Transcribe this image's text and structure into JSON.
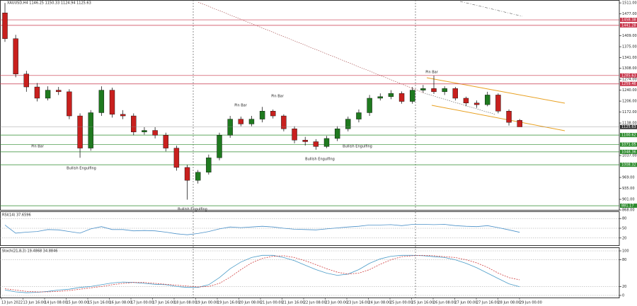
{
  "chart_data": [
    {
      "type": "candlestick",
      "title": "XAUUSD,H4 1146.25 1150.33 1124.94 1125.63",
      "open": [
        1480,
        1400,
        1290,
        1250,
        1215,
        1240,
        1235,
        1160,
        1060,
        1170,
        1240,
        1165,
        1160,
        1110,
        1115,
        1100,
        1060,
        1000,
        960,
        985,
        1030,
        1100,
        1150,
        1135,
        1150,
        1175,
        1160,
        1120,
        1085,
        1080,
        1065,
        1090,
        1120,
        1150,
        1170,
        1215,
        1220,
        1230,
        1205,
        1240,
        1245,
        1235,
        1245,
        1215,
        1200,
        1195,
        1225,
        1175,
        1146.25
      ],
      "high": [
        1511,
        1412,
        1300,
        1262,
        1252,
        1250,
        1243,
        1168,
        1178,
        1252,
        1248,
        1178,
        1168,
        1125,
        1125,
        1108,
        1068,
        1008,
        992,
        1040,
        1108,
        1160,
        1158,
        1160,
        1188,
        1180,
        1165,
        1128,
        1095,
        1088,
        1098,
        1128,
        1158,
        1180,
        1225,
        1230,
        1240,
        1236,
        1250,
        1256,
        1285,
        1252,
        1250,
        1220,
        1208,
        1235,
        1230,
        1180,
        1150.33
      ],
      "low": [
        1390,
        1280,
        1235,
        1205,
        1208,
        1225,
        1150,
        1030,
        1052,
        1160,
        1155,
        1150,
        1100,
        1102,
        1090,
        1050,
        990,
        900,
        950,
        978,
        1022,
        1092,
        1128,
        1128,
        1140,
        1152,
        1112,
        1075,
        1068,
        1055,
        1060,
        1082,
        1112,
        1140,
        1160,
        1208,
        1212,
        1198,
        1198,
        1232,
        1228,
        1225,
        1208,
        1190,
        1185,
        1190,
        1168,
        1130,
        1124.94
      ],
      "close": [
        1400,
        1290,
        1250,
        1215,
        1240,
        1235,
        1160,
        1060,
        1170,
        1240,
        1165,
        1160,
        1110,
        1115,
        1100,
        1060,
        1000,
        960,
        985,
        1030,
        1100,
        1150,
        1135,
        1150,
        1175,
        1160,
        1120,
        1085,
        1080,
        1065,
        1090,
        1120,
        1150,
        1170,
        1215,
        1220,
        1230,
        1205,
        1240,
        1245,
        1235,
        1245,
        1215,
        1200,
        1195,
        1225,
        1175,
        1140,
        1125.63
      ],
      "up_color": "#1f7a1f",
      "down_color": "#c8201e",
      "ylim": [
        866,
        1520
      ],
      "yticks": [
        {
          "value": 1511,
          "label": "1511.00"
        },
        {
          "value": 1477,
          "label": "1477.00"
        },
        {
          "value": 1409,
          "label": "1409.00"
        },
        {
          "value": 1375,
          "label": "1375.00"
        },
        {
          "value": 1341,
          "label": "1341.00"
        },
        {
          "value": 1308,
          "label": "1308.00"
        },
        {
          "value": 1274,
          "label": "1274.00"
        },
        {
          "value": 1240,
          "label": "1240.00"
        },
        {
          "value": 1206,
          "label": "1206.00"
        },
        {
          "value": 1172,
          "label": "1172.00"
        },
        {
          "value": 1138,
          "label": "1138.00"
        },
        {
          "value": 1037,
          "label": "1037.00"
        },
        {
          "value": 969,
          "label": "969.00"
        },
        {
          "value": 935,
          "label": "935.00"
        },
        {
          "value": 901,
          "label": "901.00"
        },
        {
          "value": 868,
          "label": "868.00"
        }
      ],
      "levels": [
        {
          "value": 1458.38,
          "color": "#c8344a"
        },
        {
          "value": 1441.28,
          "color": "#c8344a"
        },
        {
          "value": 1285.63,
          "color": "#c8344a"
        },
        {
          "value": 1259.46,
          "color": "#c8344a"
        },
        {
          "value": 1100.62,
          "color": "#2e8b2e"
        },
        {
          "value": 1071.05,
          "color": "#2e8b2e"
        },
        {
          "value": 1048.36,
          "color": "#2e8b2e"
        },
        {
          "value": 1008.32,
          "color": "#2e8b2e"
        },
        {
          "value": 881.17,
          "color": "#2e8b2e"
        }
      ],
      "annotations": [
        "Pin Bar",
        "Bullish Engulfing",
        "Pin Bar",
        "Pin Bar",
        "Bullish Engulfing",
        "Bullish Engulfing",
        "Bullish Engulfing",
        "Pin Bar"
      ],
      "x_labels": [
        "13 Jun 2022",
        "13 Jun 16:00",
        "14 Jun 08:00",
        "15 Jun 00:00",
        "15 Jun 16:00",
        "16 Jun 08:00",
        "17 Jun 00:00",
        "17 Jun 16:00",
        "18 Jun 08:00",
        "19 Jun 00:00",
        "19 Jun 16:00",
        "20 Jun 08:00",
        "21 Jun 00:00",
        "21 Jun 16:00",
        "22 Jun 08:00",
        "23 Jun 00:00",
        "23 Jun 16:00",
        "24 Jun 08:00",
        "25 Jun 00:00",
        "25 Jun 16:00",
        "26 Jun 08:00",
        "27 Jun 00:00",
        "27 Jun 16:00",
        "28 Jun 08:00",
        "29 Jun 00:00"
      ]
    },
    {
      "type": "line",
      "title": "RSI(14) 37.6596",
      "ylim": [
        0,
        100
      ],
      "yticks": [
        20,
        50,
        80
      ],
      "series": [
        {
          "color": "#4a90c8",
          "values": [
            60,
            35,
            38,
            40,
            46,
            45,
            40,
            35,
            48,
            55,
            46,
            46,
            42,
            43,
            42,
            38,
            33,
            30,
            34,
            40,
            48,
            54,
            52,
            54,
            56,
            54,
            50,
            47,
            46,
            45,
            48,
            51,
            54,
            56,
            60,
            60,
            61,
            58,
            62,
            62,
            61,
            62,
            58,
            56,
            55,
            58,
            52,
            45,
            37.6596
          ]
        }
      ]
    },
    {
      "type": "line",
      "title": "Stoch(21,8,3) 19.4868 34.8846",
      "ylim": [
        0,
        100
      ],
      "yticks": [
        0,
        20,
        80,
        100
      ],
      "series": [
        {
          "color": "#4a9cc8",
          "values": [
            12,
            8,
            6,
            7,
            9,
            12,
            14,
            18,
            20,
            24,
            28,
            30,
            29,
            27,
            25,
            24,
            20,
            18,
            18,
            24,
            40,
            60,
            75,
            85,
            90,
            90,
            85,
            78,
            68,
            58,
            50,
            45,
            48,
            58,
            72,
            82,
            88,
            90,
            90,
            89,
            87,
            85,
            80,
            72,
            62,
            50,
            38,
            26,
            19.4868
          ]
        },
        {
          "color": "#d04040",
          "dash": true,
          "values": [
            15,
            12,
            9,
            8,
            8,
            9,
            11,
            14,
            17,
            20,
            24,
            27,
            29,
            29,
            27,
            25,
            23,
            21,
            19,
            20,
            27,
            41,
            58,
            73,
            83,
            88,
            89,
            85,
            78,
            69,
            60,
            52,
            48,
            50,
            58,
            70,
            80,
            87,
            89,
            90,
            89,
            87,
            85,
            80,
            73,
            63,
            50,
            40,
            34.8846
          ]
        }
      ]
    }
  ]
}
